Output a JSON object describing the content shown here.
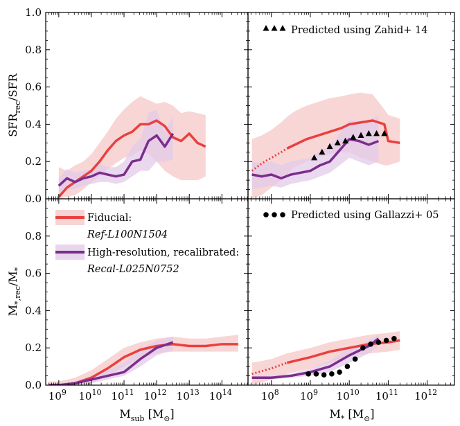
{
  "chart_data": [
    {
      "type": "line",
      "panel": "top-left",
      "xlabel": "",
      "ylabel": "SFR_rec/SFR",
      "xscale": "log",
      "xlim": [
        8.6,
        14.8
      ],
      "ylim": [
        0.0,
        1.0
      ],
      "series": [
        {
          "name": "Fiducial: Ref-L100N1504",
          "color": "#e8413f",
          "x": [
            9.0,
            9.25,
            9.5,
            9.75,
            10.0,
            10.25,
            10.5,
            10.75,
            11.0,
            11.25,
            11.5,
            11.75,
            12.0,
            12.25,
            12.5,
            12.75,
            13.0,
            13.25,
            13.5
          ],
          "y": [
            0.01,
            0.06,
            0.09,
            0.12,
            0.15,
            0.2,
            0.26,
            0.31,
            0.34,
            0.36,
            0.4,
            0.4,
            0.42,
            0.39,
            0.33,
            0.31,
            0.35,
            0.3,
            0.28
          ],
          "band_low": [
            0.0,
            0.01,
            0.02,
            0.05,
            0.09,
            0.12,
            0.16,
            0.19,
            0.22,
            0.23,
            0.26,
            0.24,
            0.2,
            0.15,
            0.12,
            0.1,
            0.1,
            0.1,
            0.12
          ],
          "band_high": [
            0.17,
            0.15,
            0.18,
            0.2,
            0.24,
            0.3,
            0.36,
            0.43,
            0.48,
            0.52,
            0.55,
            0.53,
            0.51,
            0.52,
            0.5,
            0.46,
            0.47,
            0.46,
            0.45
          ]
        },
        {
          "name": "High-resolution, recalibrated: Recal-L025N0752",
          "color": "#7b2d8e",
          "x": [
            9.0,
            9.25,
            9.5,
            9.75,
            10.0,
            10.25,
            10.5,
            10.75,
            11.0,
            11.25,
            11.5,
            11.75,
            12.0,
            12.25,
            12.5
          ],
          "y": [
            0.07,
            0.11,
            0.09,
            0.11,
            0.12,
            0.14,
            0.13,
            0.12,
            0.13,
            0.2,
            0.21,
            0.31,
            0.34,
            0.28,
            0.35
          ],
          "band_low": [
            0.03,
            0.05,
            0.05,
            0.07,
            0.08,
            0.09,
            0.09,
            0.08,
            0.09,
            0.12,
            0.15,
            0.15,
            0.2,
            0.2,
            0.21
          ],
          "band_high": [
            0.11,
            0.16,
            0.14,
            0.15,
            0.16,
            0.19,
            0.17,
            0.17,
            0.2,
            0.28,
            0.32,
            0.46,
            0.48,
            0.36,
            0.44
          ]
        }
      ]
    },
    {
      "type": "line",
      "panel": "top-right",
      "xlabel": "",
      "ylabel": "",
      "xscale": "log",
      "xlim": [
        7.4,
        12.7
      ],
      "ylim": [
        0.0,
        1.0
      ],
      "series": [
        {
          "name": "Fiducial",
          "color": "#e8413f",
          "dotted_below": 8.4,
          "x": [
            7.5,
            7.75,
            8.0,
            8.25,
            8.4,
            8.6,
            8.9,
            9.2,
            9.5,
            9.8,
            10.0,
            10.3,
            10.6,
            10.9,
            11.0,
            11.3
          ],
          "y": [
            0.15,
            0.19,
            0.22,
            0.25,
            0.27,
            0.29,
            0.32,
            0.34,
            0.36,
            0.38,
            0.4,
            0.41,
            0.42,
            0.4,
            0.31,
            0.3
          ],
          "band_low": [
            0.0,
            0.02,
            0.06,
            0.1,
            0.13,
            0.17,
            0.2,
            0.22,
            0.24,
            0.25,
            0.25,
            0.22,
            0.2,
            0.18,
            0.18,
            0.2
          ],
          "band_high": [
            0.32,
            0.34,
            0.37,
            0.41,
            0.44,
            0.47,
            0.5,
            0.52,
            0.54,
            0.55,
            0.56,
            0.57,
            0.56,
            0.48,
            0.45,
            0.43
          ]
        },
        {
          "name": "High-resolution, recalibrated",
          "color": "#7b2d8e",
          "x": [
            7.5,
            7.75,
            8.0,
            8.25,
            8.5,
            8.75,
            9.0,
            9.25,
            9.5,
            9.75,
            10.0,
            10.25,
            10.5,
            10.75
          ],
          "y": [
            0.13,
            0.12,
            0.13,
            0.11,
            0.13,
            0.14,
            0.15,
            0.18,
            0.2,
            0.26,
            0.32,
            0.31,
            0.29,
            0.31
          ],
          "band_low": [
            0.05,
            0.06,
            0.07,
            0.06,
            0.08,
            0.09,
            0.1,
            0.12,
            0.14,
            0.18,
            0.22,
            0.2,
            0.18,
            0.2
          ],
          "band_high": [
            0.2,
            0.19,
            0.2,
            0.18,
            0.2,
            0.21,
            0.22,
            0.26,
            0.28,
            0.35,
            0.42,
            0.42,
            0.42,
            0.45
          ]
        },
        {
          "name": "Predicted using Zahid+ 14",
          "color": "#000000",
          "marker": "triangle",
          "x": [
            9.1,
            9.3,
            9.5,
            9.7,
            9.9,
            10.1,
            10.3,
            10.5,
            10.7,
            10.9
          ],
          "y": [
            0.22,
            0.25,
            0.28,
            0.3,
            0.31,
            0.33,
            0.34,
            0.35,
            0.35,
            0.35
          ]
        }
      ],
      "legend": {
        "label": "Predicted using Zahid+ 14",
        "placement": "top-left"
      }
    },
    {
      "type": "line",
      "panel": "bottom-left",
      "xlabel": "M_sub [M_⊙]",
      "ylabel": "M_*,rec/M_*",
      "xscale": "log",
      "xlim": [
        8.6,
        14.8
      ],
      "ylim": [
        0.0,
        1.0
      ],
      "series": [
        {
          "name": "Fiducial: Ref-L100N1504",
          "color": "#e8413f",
          "x": [
            8.7,
            9.0,
            9.5,
            10.0,
            10.5,
            11.0,
            11.5,
            12.0,
            12.5,
            13.0,
            13.5,
            14.0,
            14.5
          ],
          "y": [
            0.0,
            0.0,
            0.01,
            0.04,
            0.09,
            0.15,
            0.19,
            0.21,
            0.22,
            0.21,
            0.21,
            0.22,
            0.22
          ],
          "band_low": [
            0.0,
            0.0,
            0.0,
            0.01,
            0.05,
            0.1,
            0.14,
            0.17,
            0.18,
            0.18,
            0.18,
            0.18,
            0.18
          ],
          "band_high": [
            0.02,
            0.02,
            0.04,
            0.08,
            0.14,
            0.2,
            0.23,
            0.25,
            0.26,
            0.25,
            0.25,
            0.26,
            0.27
          ]
        },
        {
          "name": "High-resolution, recalibrated: Recal-L025N0752",
          "color": "#7b2d8e",
          "x": [
            8.7,
            9.0,
            9.5,
            10.0,
            10.5,
            11.0,
            11.5,
            12.0,
            12.5
          ],
          "y": [
            0.0,
            0.0,
            0.01,
            0.03,
            0.05,
            0.07,
            0.14,
            0.2,
            0.23
          ],
          "band_low": [
            0.0,
            0.0,
            0.0,
            0.01,
            0.03,
            0.05,
            0.1,
            0.16,
            0.19
          ],
          "band_high": [
            0.01,
            0.01,
            0.02,
            0.05,
            0.08,
            0.12,
            0.19,
            0.24,
            0.26
          ]
        }
      ],
      "legend": {
        "placement": "top-left",
        "entries": [
          {
            "label": "Fiducial:",
            "sublabel": "Ref-L100N1504",
            "color": "#e8413f"
          },
          {
            "label": "High-resolution, recalibrated:",
            "sublabel": "Recal-L025N0752",
            "color": "#7b2d8e"
          }
        ]
      }
    },
    {
      "type": "line",
      "panel": "bottom-right",
      "xlabel": "M_* [M_⊙]",
      "ylabel": "",
      "xscale": "log",
      "xlim": [
        7.4,
        12.7
      ],
      "ylim": [
        0.0,
        1.0
      ],
      "series": [
        {
          "name": "Fiducial",
          "color": "#e8413f",
          "dotted_below": 8.4,
          "x": [
            7.5,
            8.0,
            8.4,
            9.0,
            9.5,
            10.0,
            10.5,
            11.0,
            11.3
          ],
          "y": [
            0.06,
            0.09,
            0.12,
            0.15,
            0.18,
            0.2,
            0.22,
            0.23,
            0.24
          ],
          "band_low": [
            0.0,
            0.03,
            0.06,
            0.09,
            0.12,
            0.15,
            0.17,
            0.18,
            0.19
          ],
          "band_high": [
            0.12,
            0.14,
            0.17,
            0.2,
            0.23,
            0.25,
            0.27,
            0.28,
            0.29
          ]
        },
        {
          "name": "High-resolution, recalibrated",
          "color": "#7b2d8e",
          "x": [
            7.5,
            8.0,
            8.5,
            9.0,
            9.5,
            10.0,
            10.5,
            10.75
          ],
          "y": [
            0.04,
            0.04,
            0.05,
            0.07,
            0.1,
            0.16,
            0.21,
            0.25
          ],
          "band_low": [
            0.03,
            0.03,
            0.04,
            0.05,
            0.07,
            0.12,
            0.17,
            0.21
          ],
          "band_high": [
            0.05,
            0.05,
            0.06,
            0.09,
            0.13,
            0.2,
            0.24,
            0.27
          ]
        },
        {
          "name": "Predicted using Gallazzi+ 05",
          "color": "#000000",
          "marker": "circle",
          "x": [
            8.95,
            9.15,
            9.35,
            9.55,
            9.75,
            9.95,
            10.15,
            10.35,
            10.55,
            10.75,
            10.95,
            11.15
          ],
          "y": [
            0.06,
            0.06,
            0.055,
            0.06,
            0.07,
            0.1,
            0.14,
            0.2,
            0.22,
            0.23,
            0.24,
            0.25
          ]
        }
      ],
      "legend": {
        "label": "Predicted using Gallazzi+ 05",
        "placement": "top-left"
      }
    }
  ],
  "axes": {
    "y_ticks": [
      "0.0",
      "0.2",
      "0.4",
      "0.6",
      "0.8",
      "1.0"
    ],
    "y_ticks_bottom": [
      "0.0",
      "0.2",
      "0.4",
      "0.6",
      "0.8"
    ],
    "left_x_tick_exponents": [
      "9",
      "10",
      "11",
      "12",
      "13",
      "14"
    ],
    "right_x_tick_exponents": [
      "8",
      "9",
      "10",
      "11",
      "12"
    ],
    "x_tick_base": "10",
    "top_ylabel_main": "SFR",
    "top_ylabel_sub": "rec",
    "top_ylabel_rest": "/SFR",
    "bottom_ylabel_main": "M",
    "bottom_ylabel_sub": "*,rec",
    "bottom_ylabel_rest": "/M",
    "bottom_ylabel_tail_sub": "*",
    "left_xlabel_main": "M",
    "left_xlabel_sub": "sub",
    "left_xlabel_unit": " [M",
    "left_xlabel_unit_sub": "⊙",
    "left_xlabel_close": "]",
    "right_xlabel_main": "M",
    "right_xlabel_sub": "*",
    "right_xlabel_unit": " [M",
    "right_xlabel_unit_sub": "⊙",
    "right_xlabel_close": "]"
  },
  "legends": {
    "zahid": "Predicted using Zahid+ 14",
    "gallazzi": "Predicted using Gallazzi+ 05",
    "fiducial_label": "Fiducial:",
    "fiducial_sub": "Ref-L100N1504",
    "hires_label": "High-resolution, recalibrated:",
    "hires_sub": "Recal-L025N0752"
  }
}
